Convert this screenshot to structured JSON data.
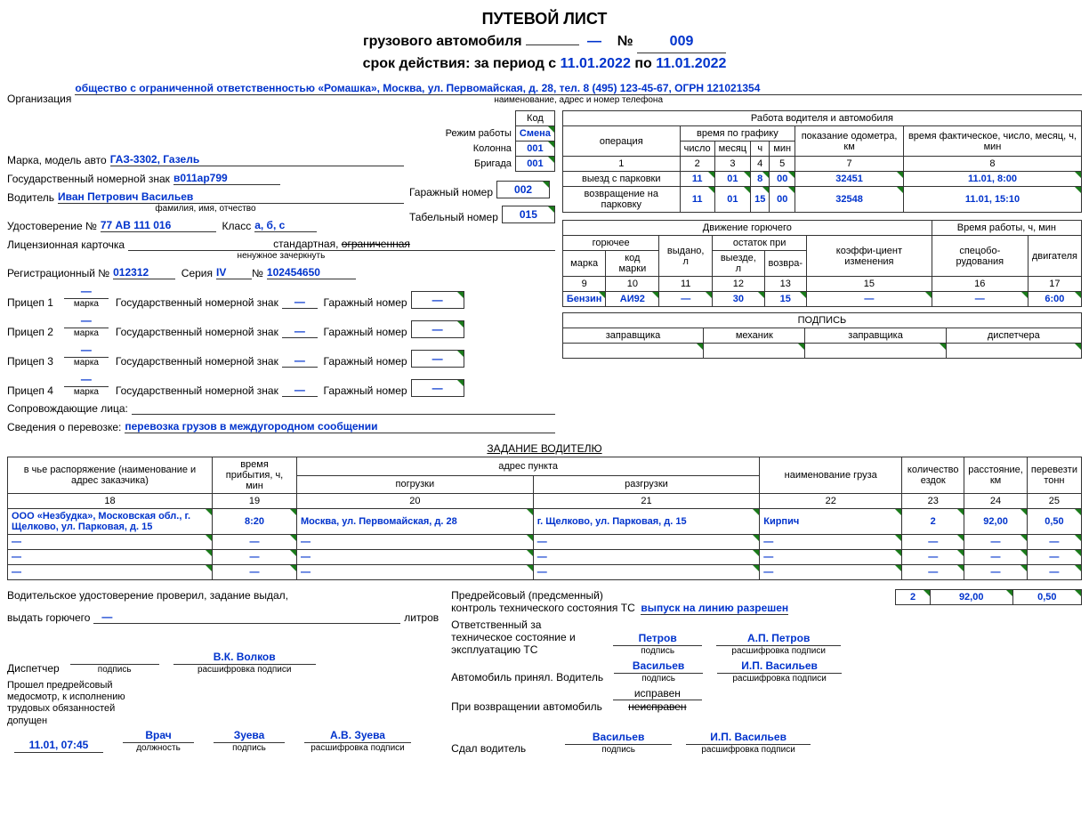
{
  "header": {
    "title1": "ПУТЕВОЙ ЛИСТ",
    "title2_part1": "грузового автомобиля",
    "title2_number_label": "№",
    "number": "009",
    "dash": "—",
    "validity_label": "срок действия: за период с",
    "date_from": "11.01.2022",
    "to_word": "по",
    "date_to": "11.01.2022"
  },
  "org": {
    "label": "Организация",
    "value": "общество с ограниченной ответственностью «Ромашка», Москва, ул. Первомайская, д. 28, тел. 8 (495) 123-45-67, ОГРН 121021354",
    "sub": "наименование, адрес и номер телефона"
  },
  "codebox": {
    "kod_label": "Код",
    "mode_label": "Режим работы",
    "mode": "Смена",
    "kolonna_label": "Колонна",
    "kolonna": "001",
    "brigada_label": "Бригада",
    "brigada": "001",
    "garage_label": "Гаражный номер",
    "garage": "002",
    "tabel_label": "Табельный номер",
    "tabel": "015"
  },
  "vehicle": {
    "model_label": "Марка, модель авто",
    "model": "ГАЗ-3302, Газель",
    "gos_label": "Государственный номерной знак",
    "gos": "в011ар799",
    "driver_label": "Водитель",
    "driver": "Иван Петрович Васильев",
    "driver_sub": "фамилия, имя, отчество",
    "udost_label": "Удостоверение №",
    "udost": "77 АВ 111 016",
    "class_label": "Класс",
    "class": "а, б, с",
    "lic_label": "Лицензионная карточка",
    "lic_std": "стандартная,",
    "lic_limited_strike": "ограниченная",
    "lic_sub": "ненужное зачеркнуть",
    "reg_label": "Регистрационный №",
    "reg": "012312",
    "seria_label": "Серия",
    "seria": "IV",
    "seria_num": "№",
    "seria_val": "102454650"
  },
  "trailers": {
    "labels": [
      "Прицеп 1",
      "Прицеп 2",
      "Прицеп 3",
      "Прицеп 4"
    ],
    "marka_sub": "марка",
    "gos_label": "Государственный номерной знак",
    "garage_label": "Гаражный номер",
    "dash": "—"
  },
  "persons": {
    "accomp_label": "Сопровождающие лица:",
    "info_label": "Сведения о перевозке:",
    "info_value": "перевозка грузов в междугородном сообщении"
  },
  "drivework": {
    "title": "Работа водителя и автомобиля",
    "cols": {
      "op": "операция",
      "time_sched": "время по графику",
      "number": "число",
      "month": "месяц",
      "h": "ч",
      "min": "мин",
      "odo": "показание одометра, км",
      "fact": "время фактическое, число, месяц, ч, мин"
    },
    "numrow": [
      "1",
      "2",
      "3",
      "4",
      "5",
      "7",
      "8"
    ],
    "rows": [
      {
        "op": "выезд с парковки",
        "num": "11",
        "month": "01",
        "h": "8",
        "min": "00",
        "odo": "32451",
        "fact": "11.01, 8:00"
      },
      {
        "op": "возвращение на парковку",
        "num": "11",
        "month": "01",
        "h": "15",
        "min": "00",
        "odo": "32548",
        "fact": "11.01, 15:10"
      }
    ]
  },
  "fuel": {
    "title_left": "Движение горючего",
    "title_right": "Время работы, ч, мин",
    "cols": {
      "fuel": "горючее",
      "marka": "марка",
      "kod": "код марки",
      "issued": "выдано, л",
      "remain": "остаток при",
      "remain_out": "выезде, л",
      "remain_in": "возвра-",
      "coef": "коэффи-циент изменения",
      "specob": "спецобо-рудования",
      "engine": "двигателя"
    },
    "numrow": [
      "9",
      "10",
      "11",
      "12",
      "13",
      "15",
      "16",
      "17"
    ],
    "row": {
      "marka": "Бензин",
      "kod": "АИ92",
      "issued": "—",
      "out": "30",
      "in": "15",
      "coef": "—",
      "spec": "—",
      "eng": "6:00"
    },
    "sign_title": "ПОДПИСЬ",
    "sign_cols": [
      "заправщика",
      "механик",
      "заправщика",
      "диспетчера"
    ]
  },
  "task": {
    "title": "ЗАДАНИЕ ВОДИТЕЛЮ",
    "cols": {
      "who": "в чье распоряжение (наименование и адрес заказчика)",
      "arrival": "время прибытия, ч, мин",
      "addr": "адрес пункта",
      "load": "погрузки",
      "unload": "разгрузки",
      "cargo": "наименование груза",
      "trips": "количество ездок",
      "dist": "расстояние, км",
      "tons": "перевезти тонн"
    },
    "numrow": [
      "18",
      "19",
      "20",
      "21",
      "22",
      "23",
      "24",
      "25"
    ],
    "rows": [
      {
        "who": "ООО «Незбудка», Московская обл., г. Щелково, ул. Парковая, д. 15",
        "arr": "8:20",
        "load": "Москва, ул. Первомайская, д. 28",
        "unload": "г. Щелково, ул. Парковая, д. 15",
        "cargo": "Кирпич",
        "trips": "2",
        "dist": "92,00",
        "tons": "0,50"
      },
      {
        "who": "—",
        "arr": "—",
        "load": "—",
        "unload": "—",
        "cargo": "—",
        "trips": "—",
        "dist": "—",
        "tons": "—"
      },
      {
        "who": "—",
        "arr": "—",
        "load": "—",
        "unload": "—",
        "cargo": "—",
        "trips": "—",
        "dist": "—",
        "tons": "—"
      },
      {
        "who": "—",
        "arr": "—",
        "load": "—",
        "unload": "—",
        "cargo": "—",
        "trips": "—",
        "dist": "—",
        "tons": "—"
      }
    ],
    "totals": {
      "trips": "2",
      "dist": "92,00",
      "tons": "0,50"
    }
  },
  "footer": {
    "left": {
      "checked": "Водительское удостоверение проверил, задание выдал,",
      "fuel_label": "выдать горючего",
      "liters": "литров",
      "disp_label": "Диспетчер",
      "sig_sub": "подпись",
      "disp_name": "В.К. Волков",
      "decode_sub": "расшифровка подписи",
      "med_text": "Прошел предрейсовый медосмотр, к исполнению трудовых обязанностей допущен",
      "med_time": "11.01, 07:45",
      "med_pos": "Врач",
      "med_pos_sub": "должность",
      "med_sig": "Зуева",
      "med_name": "А.В. Зуева"
    },
    "center": {
      "pretrip1": "Предрейсовый (предсменный)",
      "pretrip2": "контроль технического состояния ТС",
      "allowed": "выпуск на линию разрешен",
      "resp_label": "Ответственный за техническое состояние и эксплуатацию ТС",
      "resp_sig": "Петров",
      "resp_name": "А.П. Петров",
      "accepted": "Автомобиль принял. Водитель",
      "acc_sig": "Васильев",
      "acc_name": "И.П. Васильев",
      "return_label": "При возвращении автомобиль",
      "ok": "исправен",
      "notok_strike": "неисправен",
      "handed": "Сдал водитель",
      "hand_sig": "Васильев",
      "hand_name": "И.П. Васильев"
    }
  }
}
